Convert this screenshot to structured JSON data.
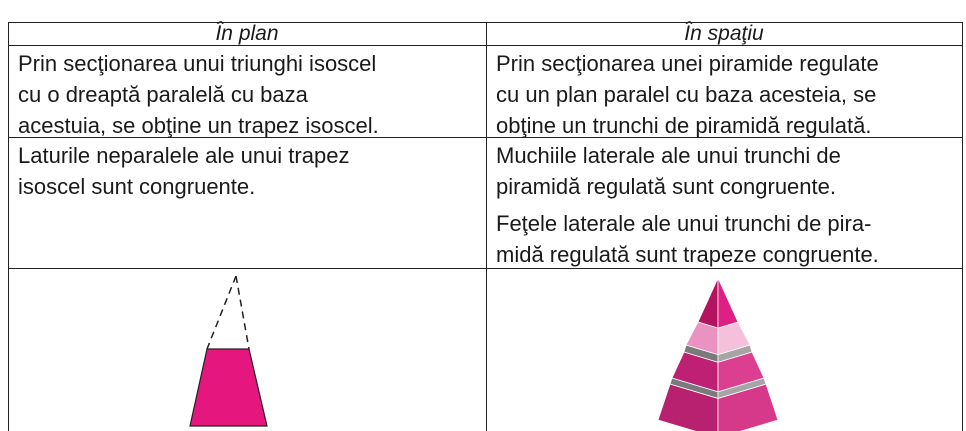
{
  "table": {
    "header": [
      "În plan",
      "În spaţiu"
    ],
    "rows": [
      [
        [
          [
            "Prin secţionarea unui triunghi isoscel",
            "cu o dreaptă paralelă cu baza",
            "acestuia, se obţine un trapez isoscel."
          ]
        ],
        [
          [
            "Prin secţionarea unei piramide regulate",
            "cu un plan paralel cu baza acesteia, se",
            "obţine un trunchi de piramidă regulată."
          ]
        ]
      ],
      [
        [
          [
            "Laturile neparalele ale unui trapez",
            "isoscel sunt congruente."
          ]
        ],
        [
          [
            "Muchiile laterale ale unui trunchi de",
            "piramidă regulată sunt congruente."
          ],
          [
            "Feţele laterale ale unui trunchi de pira-",
            "midă regulată sunt trapeze congruente."
          ]
        ]
      ]
    ]
  }
}
